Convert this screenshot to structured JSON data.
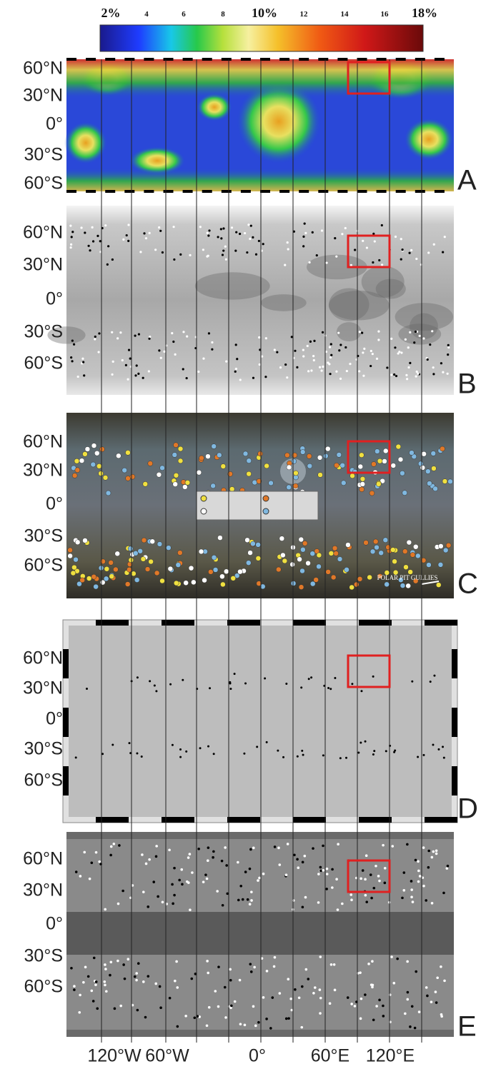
{
  "colorbar": {
    "labels": [
      "2%",
      "4",
      "6",
      "8",
      "10%",
      "12",
      "14",
      "16",
      "18%"
    ]
  },
  "panels": [
    {
      "letter": "A",
      "latitudes": [
        "60°N",
        "30°N",
        "0°",
        "30°S",
        "60°S"
      ]
    },
    {
      "letter": "B",
      "latitudes": [
        "60°N",
        "30°N",
        "0°",
        "30°S",
        "60°S"
      ]
    },
    {
      "letter": "C",
      "latitudes": [
        "60°N",
        "30°N",
        "0°",
        "30°S",
        "60°S"
      ],
      "annotation": "POLAR PIT GULLIES"
    },
    {
      "letter": "D",
      "latitudes": [
        "60°N",
        "30°N",
        "0°",
        "30°S",
        "60°S"
      ]
    },
    {
      "letter": "E",
      "latitudes": [
        "60°N",
        "30°N",
        "0°",
        "30°S",
        "60°S"
      ]
    }
  ],
  "longitudes": [
    "120°W",
    "60°W",
    "0°",
    "60°E",
    "120°E"
  ]
}
